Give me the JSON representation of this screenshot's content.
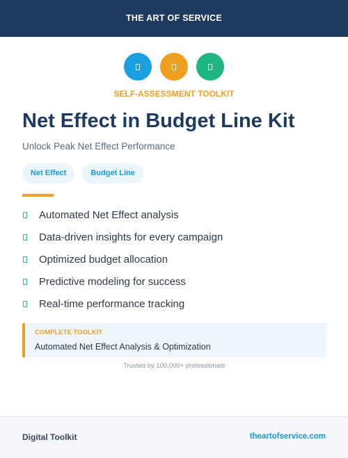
{
  "header": {
    "brand": "THE ART OF SERVICE"
  },
  "icons": [
    {
      "name": "document-icon",
      "color": "#1aa0e0"
    },
    {
      "name": "document-icon",
      "color": "#f0a020"
    },
    {
      "name": "document-icon",
      "color": "#20b585"
    }
  ],
  "hero": {
    "kicker": "SELF-ASSESSMENT TOOLKIT",
    "title": "Net Effect in Budget Line Kit",
    "subtitle": "Unlock Peak Net Effect Performance",
    "tags": [
      "Net Effect",
      "Budget Line"
    ]
  },
  "features": [
    "Automated Net Effect analysis",
    "Data-driven insights for every campaign",
    "Optimized budget allocation",
    "Predictive modeling for success",
    "Real-time performance tracking"
  ],
  "callout": {
    "label": "COMPLETE TOOLKIT",
    "text": "Automated Net Effect Analysis & Optimization"
  },
  "trusted": "Trusted by 100,000+ professionals",
  "footer": {
    "left": "Digital Toolkit",
    "right": "theartofservice.com"
  },
  "colors": {
    "navy": "#1f3a5f",
    "accent": "#f0a020",
    "link": "#1a9ad6",
    "check": "#2bb58a"
  }
}
